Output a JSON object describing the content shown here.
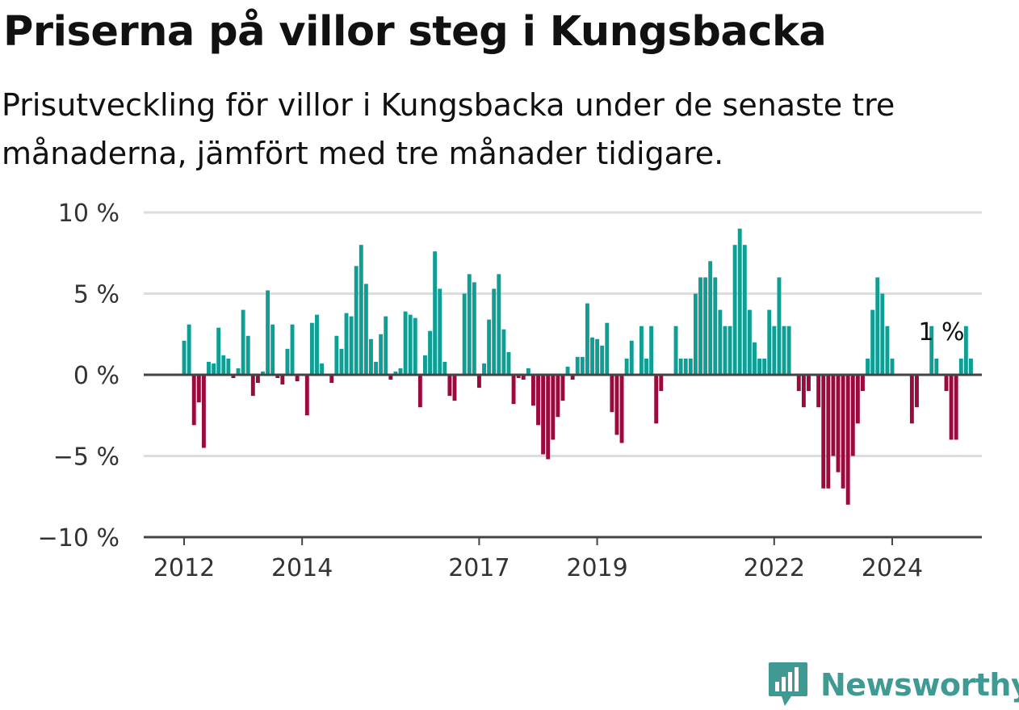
{
  "title": "Priserna på villor steg i Kungsbacka",
  "subtitle": "Prisutveckling för villor i Kungsbacka under de senaste tre månaderna, jämfört med tre månader tidigare.",
  "brand": {
    "name": "Newsworthy",
    "color": "#3f9a94",
    "icon": "bar-chart-speech-icon"
  },
  "colors": {
    "positive": "#0e9e94",
    "negative": "#9b0a3f",
    "zero_line": "#444444",
    "grid": "#dddddd"
  },
  "chart_data": {
    "type": "bar",
    "x_start": "2012-01",
    "x_interval": "month",
    "ylim": [
      -10,
      10
    ],
    "yticks": [
      10,
      5,
      0,
      -5,
      -10
    ],
    "ytick_labels": [
      "10 %",
      "5 %",
      "0 %",
      "−5 %",
      "−10 %"
    ],
    "xticks": [
      "2012",
      "2014",
      "2017",
      "2019",
      "2022",
      "2024"
    ],
    "grid": true,
    "annotation": "1 %",
    "values": [
      2.1,
      3.1,
      -3.1,
      -1.7,
      -4.5,
      0.8,
      0.7,
      2.9,
      1.2,
      1.0,
      -0.2,
      0.4,
      4.0,
      2.4,
      -1.3,
      -0.5,
      0.2,
      5.2,
      3.1,
      -0.2,
      -0.6,
      1.6,
      3.1,
      -0.4,
      0.0,
      -2.5,
      3.2,
      3.7,
      0.7,
      0.0,
      -0.5,
      2.4,
      1.6,
      3.8,
      3.6,
      6.7,
      8.0,
      5.6,
      2.2,
      0.8,
      2.5,
      3.6,
      -0.3,
      0.2,
      0.4,
      3.9,
      3.7,
      3.5,
      -2.0,
      1.2,
      2.7,
      7.6,
      5.3,
      0.8,
      -1.3,
      -1.6,
      0.0,
      5.0,
      6.2,
      5.7,
      -0.8,
      0.7,
      3.4,
      5.3,
      6.2,
      2.8,
      1.4,
      -1.8,
      -0.2,
      -0.3,
      0.4,
      -1.9,
      -3.1,
      -4.9,
      -5.2,
      -4.0,
      -2.6,
      -1.6,
      0.5,
      -0.3,
      1.1,
      1.1,
      4.4,
      2.3,
      2.2,
      1.8,
      3.2,
      -2.3,
      -3.7,
      -4.2,
      1.0,
      2.1,
      0.0,
      3.0,
      1.0,
      3.0,
      -3.0,
      -1.0,
      0.0,
      0.0,
      3.0,
      1.0,
      1.0,
      1.0,
      5.0,
      6.0,
      6.0,
      7.0,
      6.0,
      4.0,
      3.0,
      3.0,
      8.0,
      9.0,
      8.0,
      4.0,
      2.0,
      1.0,
      1.0,
      4.0,
      3.0,
      6.0,
      3.0,
      3.0,
      0.0,
      -1.0,
      -2.0,
      -1.0,
      0.0,
      -2.0,
      -7.0,
      -7.0,
      -5.0,
      -6.0,
      -7.0,
      -8.0,
      -5.0,
      -3.0,
      -1.0,
      1.0,
      4.0,
      6.0,
      5.0,
      3.0,
      1.0,
      0.0,
      0.0,
      0.0,
      -3.0,
      -2.0,
      0.0,
      0.0,
      3.0,
      1.0,
      0.0,
      -1.0,
      -4.0,
      -4.0,
      1.0,
      3.0,
      1.0
    ]
  }
}
